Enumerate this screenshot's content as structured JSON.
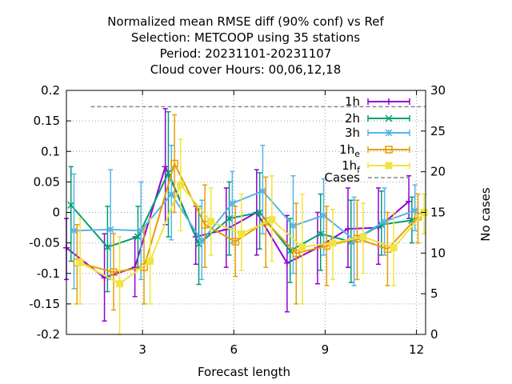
{
  "chart_data": {
    "type": "line",
    "title_lines": [
      "Normalized mean RMSE diff (90% conf) vs Ref",
      "Selection: METCOOP using    35 stations",
      "Period: 20231101-20231107",
      "Cloud cover   Hours:  00,06,12,18"
    ],
    "xlabel": "Forecast length",
    "ylabel": "",
    "y2label": "No cases",
    "xlim": [
      0.5,
      12.3
    ],
    "ylim": [
      -0.2,
      0.2
    ],
    "y2lim": [
      0,
      30
    ],
    "xticks": [
      3,
      6,
      9,
      12
    ],
    "xtick_labels": [
      "3",
      "6",
      "9",
      "12"
    ],
    "yticks": [
      -0.2,
      -0.15,
      -0.1,
      -0.05,
      0,
      0.05,
      0.1,
      0.15,
      0.2
    ],
    "ytick_labels": [
      "-0.2",
      "-0.15",
      "-0.1",
      "-0.05",
      "0",
      "0.05",
      "0.1",
      "0.15",
      "0.2"
    ],
    "y2ticks": [
      0,
      5,
      10,
      15,
      20,
      25,
      30
    ],
    "y2tick_labels": [
      "0",
      "5",
      "10",
      "15",
      "20",
      "25",
      "30"
    ],
    "grid": true,
    "legend_position": "top-right",
    "series": [
      {
        "name": "1h",
        "legend_sub": "",
        "color": "#9400d3",
        "marker": "plus",
        "x": [
          0.5,
          1.75,
          2.75,
          3.75,
          4.75,
          5.75,
          6.75,
          7.75,
          8.75,
          9.75,
          10.75,
          11.75
        ],
        "y": [
          -0.058,
          -0.107,
          -0.09,
          0.075,
          -0.04,
          -0.028,
          0.0,
          -0.083,
          -0.058,
          -0.027,
          -0.025,
          0.018
        ],
        "lo": [
          -0.11,
          -0.178,
          -0.138,
          -0.02,
          -0.085,
          -0.09,
          -0.07,
          -0.163,
          -0.117,
          -0.09,
          -0.085,
          -0.01
        ],
        "hi": [
          -0.01,
          -0.035,
          -0.04,
          0.17,
          0.01,
          0.04,
          0.07,
          -0.005,
          0.0,
          0.04,
          0.04,
          0.06
        ]
      },
      {
        "name": "2h",
        "legend_sub": "",
        "color": "#009e73",
        "marker": "cross",
        "x": [
          0.65,
          1.85,
          2.85,
          3.85,
          4.85,
          5.85,
          6.85,
          7.85,
          8.85,
          9.85,
          10.85,
          11.85
        ],
        "y": [
          0.012,
          -0.057,
          -0.04,
          0.065,
          -0.052,
          -0.01,
          0.0,
          -0.063,
          -0.035,
          -0.048,
          -0.02,
          -0.013
        ],
        "lo": [
          -0.08,
          -0.13,
          -0.09,
          -0.04,
          -0.118,
          -0.07,
          -0.06,
          -0.115,
          -0.095,
          -0.115,
          -0.07,
          -0.05
        ],
        "hi": [
          0.075,
          0.01,
          0.01,
          0.165,
          0.01,
          0.05,
          0.065,
          -0.01,
          0.03,
          0.02,
          0.035,
          0.025
        ]
      },
      {
        "name": "3h",
        "legend_sub": "",
        "color": "#56b4e9",
        "marker": "star",
        "x": [
          0.75,
          1.95,
          2.95,
          3.95,
          4.95,
          5.95,
          6.95,
          7.95,
          8.95,
          9.95,
          10.95,
          11.95
        ],
        "y": [
          -0.03,
          -0.028,
          -0.03,
          0.03,
          -0.047,
          0.015,
          0.035,
          -0.022,
          -0.005,
          -0.045,
          -0.015,
          0.003
        ],
        "lo": [
          -0.125,
          -0.11,
          -0.11,
          -0.045,
          -0.11,
          -0.05,
          -0.035,
          -0.1,
          -0.07,
          -0.12,
          -0.07,
          -0.03
        ],
        "hi": [
          0.063,
          0.07,
          0.05,
          0.11,
          0.02,
          0.067,
          0.11,
          0.06,
          0.055,
          0.025,
          0.04,
          0.045
        ]
      },
      {
        "name": "1h",
        "legend_sub": "e",
        "color": "#e69f00",
        "marker": "square",
        "x": [
          0.85,
          2.05,
          3.05,
          4.05,
          5.05,
          6.05,
          7.05,
          8.05,
          9.05,
          10.05,
          11.05,
          12.05
        ],
        "y": [
          -0.082,
          -0.098,
          -0.09,
          0.08,
          -0.02,
          -0.048,
          -0.015,
          -0.067,
          -0.055,
          -0.043,
          -0.06,
          -0.007
        ],
        "lo": [
          -0.15,
          -0.16,
          -0.15,
          0.0,
          -0.09,
          -0.105,
          -0.09,
          -0.15,
          -0.12,
          -0.11,
          -0.12,
          -0.05
        ],
        "hi": [
          -0.02,
          -0.035,
          -0.025,
          0.16,
          0.045,
          0.01,
          0.058,
          0.015,
          0.01,
          0.02,
          0.0,
          0.03
        ]
      },
      {
        "name": "1h",
        "legend_sub": "f",
        "color": "#f0e442",
        "marker": "filled-square",
        "x": [
          0.95,
          2.25,
          3.25,
          4.25,
          5.25,
          6.25,
          7.25,
          8.25,
          9.25,
          10.25,
          11.25,
          12.25
        ],
        "y": [
          -0.082,
          -0.117,
          -0.08,
          0.045,
          -0.015,
          -0.035,
          -0.012,
          -0.057,
          -0.05,
          -0.04,
          -0.058,
          0.0
        ],
        "lo": [
          -0.15,
          -0.2,
          -0.15,
          -0.03,
          -0.07,
          -0.095,
          -0.08,
          -0.15,
          -0.11,
          -0.1,
          -0.12,
          -0.035
        ],
        "hi": [
          -0.01,
          -0.04,
          -0.01,
          0.12,
          0.04,
          0.03,
          0.06,
          0.03,
          0.005,
          0.015,
          0.0,
          0.03
        ]
      }
    ],
    "cases": {
      "name": "Cases",
      "color": "#888888",
      "value": 28,
      "x_range": [
        1.3,
        12.3
      ]
    }
  }
}
